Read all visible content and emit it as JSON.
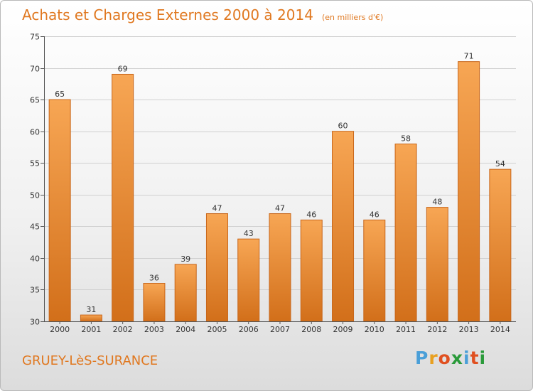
{
  "header": {
    "title": "Achats et Charges Externes 2000 à 2014",
    "unit": "(en milliers d'€)"
  },
  "footer": {
    "commune": "GRUEY-LèS-SURANCE",
    "logo_letters": [
      "P",
      "r",
      "o",
      "x",
      "i",
      "t",
      "i"
    ],
    "logo_colors": [
      "#4a9fd8",
      "#e8a020",
      "#e05020",
      "#2a9a3a",
      "#4a9fd8",
      "#e05020",
      "#2a9a3a"
    ]
  },
  "chart_data": {
    "type": "bar",
    "categories": [
      "2000",
      "2001",
      "2002",
      "2003",
      "2004",
      "2005",
      "2006",
      "2007",
      "2008",
      "2009",
      "2010",
      "2011",
      "2012",
      "2013",
      "2014"
    ],
    "values": [
      65,
      31,
      69,
      36,
      39,
      47,
      43,
      47,
      46,
      60,
      46,
      58,
      48,
      71,
      54
    ],
    "ylim": [
      30,
      75
    ],
    "yticks": [
      30,
      35,
      40,
      45,
      50,
      55,
      60,
      65,
      70,
      75
    ],
    "grid": true,
    "bar_color": "#f0922e"
  }
}
